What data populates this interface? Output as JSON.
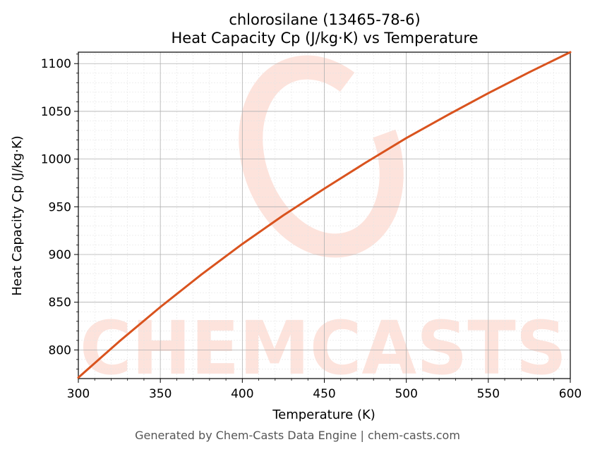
{
  "chart_data": {
    "type": "line",
    "title_line1": "chlorosilane (13465-78-6)",
    "title_line2": "Heat Capacity Cp (J/kg·K) vs Temperature",
    "xlabel": "Temperature (K)",
    "ylabel": "Heat Capacity Cp (J/kg·K)",
    "xlim": [
      300,
      600
    ],
    "ylim": [
      770,
      1112
    ],
    "xticks": [
      300,
      350,
      400,
      450,
      500,
      550,
      600
    ],
    "yticks": [
      800,
      850,
      900,
      950,
      1000,
      1050,
      1100
    ],
    "grid": true,
    "series": [
      {
        "color": "#d9531e",
        "x": [
          300,
          325,
          350,
          375,
          400,
          425,
          450,
          475,
          500,
          525,
          550,
          575,
          600
        ],
        "y": [
          771,
          809,
          845,
          879,
          911,
          941,
          969,
          996,
          1022,
          1046,
          1069,
          1091,
          1112
        ]
      }
    ]
  },
  "watermark": {
    "text": "CHEMCASTS",
    "color": "#fde3dc"
  },
  "footer": "Generated by Chem-Casts Data Engine | chem-casts.com"
}
